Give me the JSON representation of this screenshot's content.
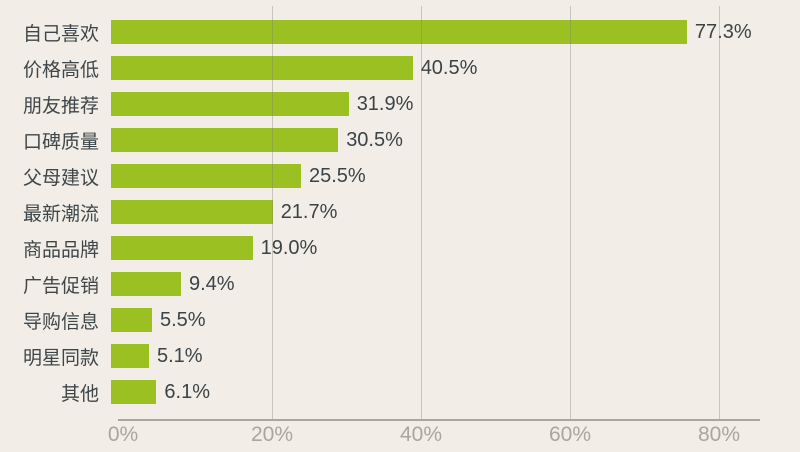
{
  "chart_data": {
    "type": "bar",
    "orientation": "horizontal",
    "title": "",
    "xlabel": "",
    "ylabel": "",
    "categories": [
      "自己喜欢",
      "价格高低",
      "朋友推荐",
      "口碑质量",
      "父母建议",
      "最新潮流",
      "商品品牌",
      "广告促销",
      "导购信息",
      "明星同款",
      "其他"
    ],
    "values": [
      77.3,
      40.5,
      31.9,
      30.5,
      25.5,
      21.7,
      19.0,
      9.4,
      5.5,
      5.1,
      6.1
    ],
    "value_labels": [
      "77.3%",
      "40.5%",
      "31.9%",
      "30.5%",
      "25.5%",
      "21.7%",
      "19.0%",
      "9.4%",
      "5.5%",
      "5.1%",
      "6.1%"
    ],
    "x_ticks": [
      {
        "label": "0%",
        "value": 0
      },
      {
        "label": "20%",
        "value": 20
      },
      {
        "label": "40%",
        "value": 40
      },
      {
        "label": "60%",
        "value": 60
      },
      {
        "label": "80%",
        "value": 80
      }
    ],
    "xlim": [
      0,
      85.5
    ],
    "grid": "vertical-gridlines-over-bars",
    "legend": "none"
  },
  "colors": {
    "background": "#f2eee7",
    "bar": "#9ac121",
    "category_text": "#3f464a",
    "value_text": "#3c4347",
    "tick_text": "#a9a69e",
    "gridline": "rgba(125,121,112,0.35)",
    "axis_line": "#aaa69d"
  }
}
